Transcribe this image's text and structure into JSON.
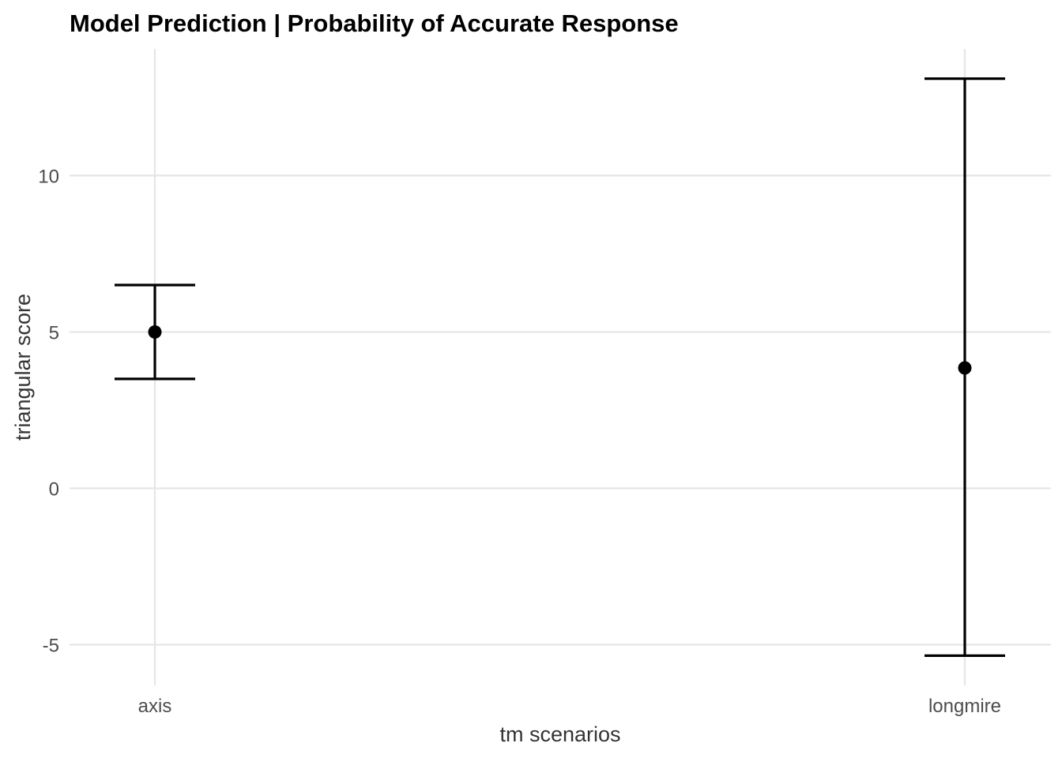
{
  "chart_data": {
    "type": "errorbar",
    "title": "Model Prediction | Probability of Accurate Response",
    "xlabel": "tm scenarios",
    "ylabel": "triangular score",
    "categories": [
      "axis",
      "longmire"
    ],
    "estimate": [
      5.0,
      3.85
    ],
    "lower": [
      3.5,
      -5.35
    ],
    "upper": [
      6.5,
      13.1
    ],
    "yticks": [
      -5,
      0,
      5,
      10
    ],
    "ytick_labels": [
      "-5",
      "0",
      "5",
      "10"
    ],
    "ylim": [
      -6.3,
      14.05
    ],
    "grid": true,
    "legend": "none",
    "colors": {
      "mark": "#000000",
      "grid": "#e6e6e6",
      "tick_text": "#4d4d4d",
      "axis_title": "#333333"
    }
  }
}
